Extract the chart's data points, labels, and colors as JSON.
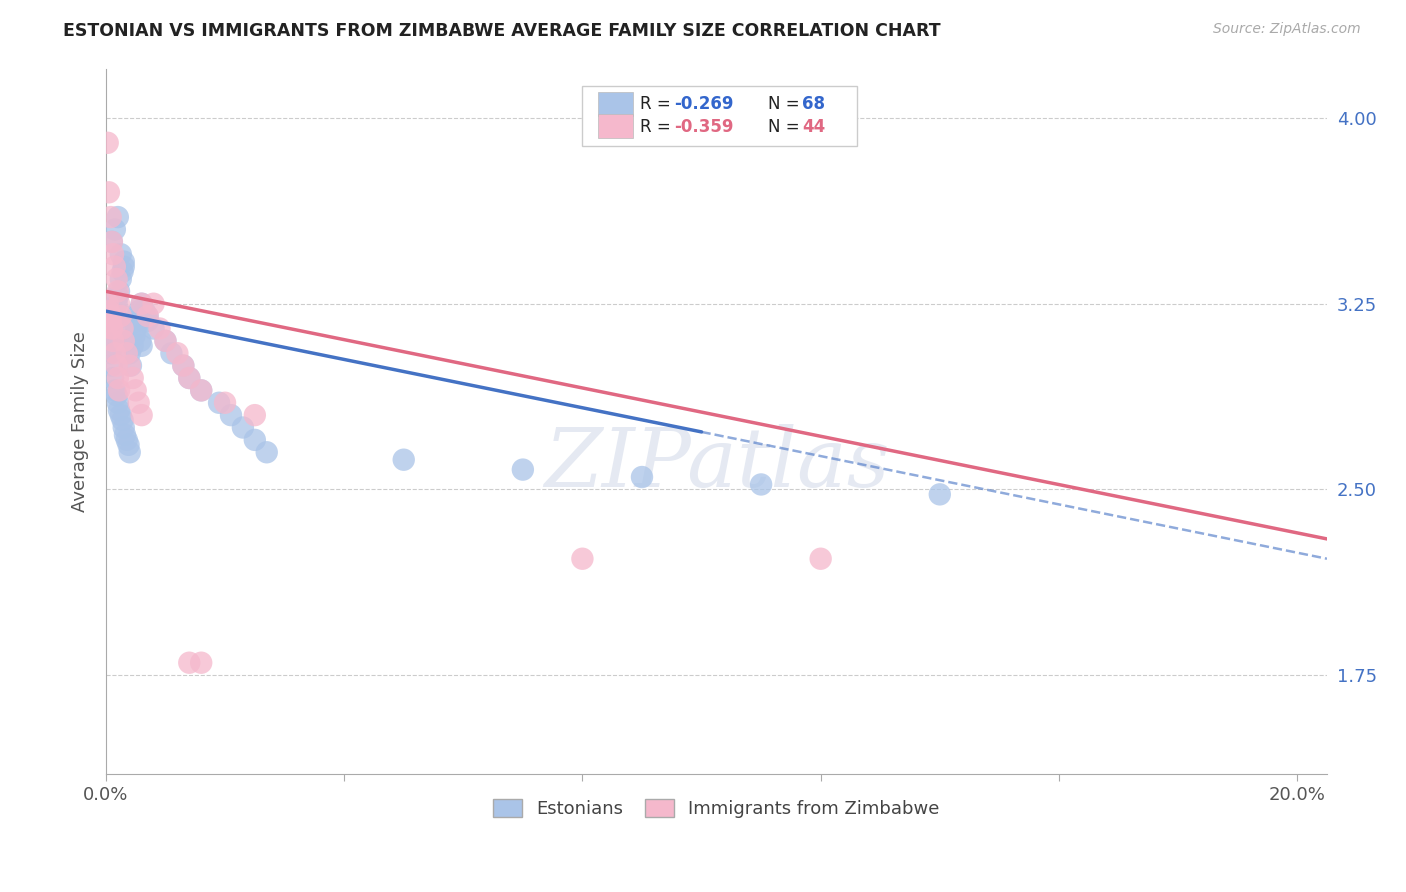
{
  "title": "ESTONIAN VS IMMIGRANTS FROM ZIMBABWE AVERAGE FAMILY SIZE CORRELATION CHART",
  "source": "Source: ZipAtlas.com",
  "ylabel": "Average Family Size",
  "ytick_vals": [
    1.75,
    2.5,
    3.25,
    4.0
  ],
  "xlim": [
    0.0,
    0.205
  ],
  "ylim": [
    1.35,
    4.2
  ],
  "legend_r1": "R = -0.269",
  "legend_n1": "N = 68",
  "legend_r2": "R = -0.359",
  "legend_n2": "N = 44",
  "legend_labels": [
    "Estonians",
    "Immigrants from Zimbabwe"
  ],
  "blue_color": "#aac4e8",
  "pink_color": "#f5b8cc",
  "blue_line_color": "#4472c4",
  "pink_line_color": "#e06882",
  "blue_scatter_x": [
    0.0008,
    0.001,
    0.0012,
    0.0015,
    0.0018,
    0.002,
    0.0022,
    0.0025,
    0.0028,
    0.003,
    0.0032,
    0.0035,
    0.0038,
    0.004,
    0.0042,
    0.0045,
    0.0048,
    0.005,
    0.0052,
    0.0055,
    0.0058,
    0.006,
    0.0008,
    0.001,
    0.0012,
    0.0015,
    0.0018,
    0.002,
    0.0022,
    0.0025,
    0.0028,
    0.003,
    0.0032,
    0.0035,
    0.0038,
    0.004,
    0.001,
    0.0015,
    0.002,
    0.0025,
    0.003,
    0.007,
    0.008,
    0.01,
    0.011,
    0.013,
    0.014,
    0.016,
    0.019,
    0.021,
    0.023,
    0.025,
    0.027,
    0.05,
    0.07,
    0.09,
    0.11,
    0.14,
    0.006,
    0.0065,
    0.007,
    0.0012,
    0.0008,
    0.0005,
    0.0003,
    0.0003,
    0.0003,
    0.0003
  ],
  "blue_scatter_y": [
    3.2,
    3.15,
    3.18,
    3.22,
    3.25,
    3.28,
    3.3,
    3.35,
    3.38,
    3.4,
    3.2,
    3.15,
    3.1,
    3.05,
    3.0,
    3.08,
    3.12,
    3.15,
    3.18,
    3.22,
    3.1,
    3.08,
    3.05,
    3.0,
    2.95,
    2.9,
    2.88,
    2.85,
    2.82,
    2.8,
    2.78,
    2.75,
    2.72,
    2.7,
    2.68,
    2.65,
    3.5,
    3.55,
    3.6,
    3.45,
    3.42,
    3.2,
    3.15,
    3.1,
    3.05,
    3.0,
    2.95,
    2.9,
    2.85,
    2.8,
    2.75,
    2.7,
    2.65,
    2.62,
    2.58,
    2.55,
    2.52,
    2.48,
    3.25,
    3.22,
    3.18,
    3.08,
    3.12,
    3.15,
    3.2,
    3.22,
    3.18,
    3.16
  ],
  "pink_scatter_x": [
    0.0003,
    0.0005,
    0.0008,
    0.001,
    0.0012,
    0.0015,
    0.0018,
    0.002,
    0.0022,
    0.0025,
    0.0028,
    0.003,
    0.0035,
    0.004,
    0.0045,
    0.005,
    0.0055,
    0.006,
    0.0008,
    0.001,
    0.0012,
    0.0015,
    0.0018,
    0.002,
    0.0022,
    0.0003,
    0.0005,
    0.0008,
    0.001,
    0.006,
    0.007,
    0.008,
    0.009,
    0.01,
    0.012,
    0.013,
    0.014,
    0.016,
    0.02,
    0.025,
    0.08,
    0.12,
    0.014,
    0.016
  ],
  "pink_scatter_y": [
    3.9,
    3.7,
    3.6,
    3.5,
    3.45,
    3.4,
    3.35,
    3.3,
    3.25,
    3.2,
    3.15,
    3.1,
    3.05,
    3.0,
    2.95,
    2.9,
    2.85,
    2.8,
    3.2,
    3.15,
    3.1,
    3.05,
    3.0,
    2.95,
    2.9,
    3.25,
    3.22,
    3.18,
    3.15,
    3.25,
    3.2,
    3.25,
    3.15,
    3.1,
    3.05,
    3.0,
    2.95,
    2.9,
    2.85,
    2.8,
    2.22,
    2.22,
    1.8,
    1.8
  ],
  "blue_trend_x": [
    0.0,
    0.205
  ],
  "blue_trend_y": [
    3.22,
    2.22
  ],
  "pink_trend_x": [
    0.0,
    0.205
  ],
  "pink_trend_y": [
    3.3,
    2.3
  ],
  "watermark": "ZIPatlas",
  "background_color": "#ffffff",
  "grid_color": "#cccccc",
  "xtick_positions": [
    0.0,
    0.04,
    0.08,
    0.12,
    0.16,
    0.2
  ],
  "xtick_labels": [
    "0.0%",
    "",
    "",
    "",
    "",
    "20.0%"
  ]
}
